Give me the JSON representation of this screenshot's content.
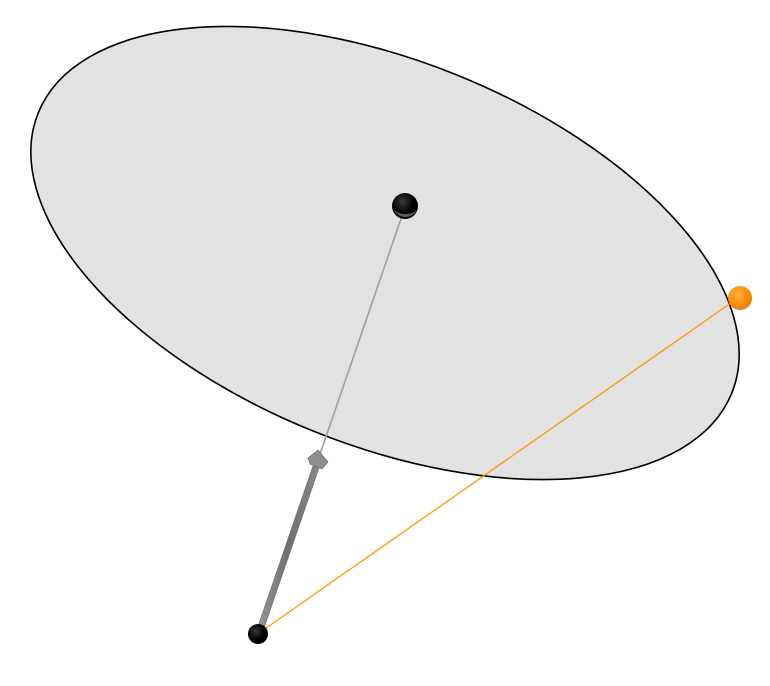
{
  "scene": {
    "background_color": "#ffffff",
    "disc_fill_color": "#e1e2e1",
    "disc_edge_color": "#000000",
    "point_color": "#000000",
    "highlight_point_color": "#ff8800",
    "axis_line_color": "#a0a0a0",
    "vector_color": "#7f7f7f",
    "orange_line_color": "#ff9900"
  },
  "objects": [
    {
      "name": "disc",
      "icon": "ellipse-disc"
    },
    {
      "name": "center-point",
      "icon": "sphere"
    },
    {
      "name": "apex-point",
      "icon": "sphere"
    },
    {
      "name": "rim-point",
      "icon": "sphere"
    },
    {
      "name": "normal-vector",
      "icon": "arrow"
    },
    {
      "name": "apex-to-rim-line",
      "icon": "line"
    }
  ]
}
